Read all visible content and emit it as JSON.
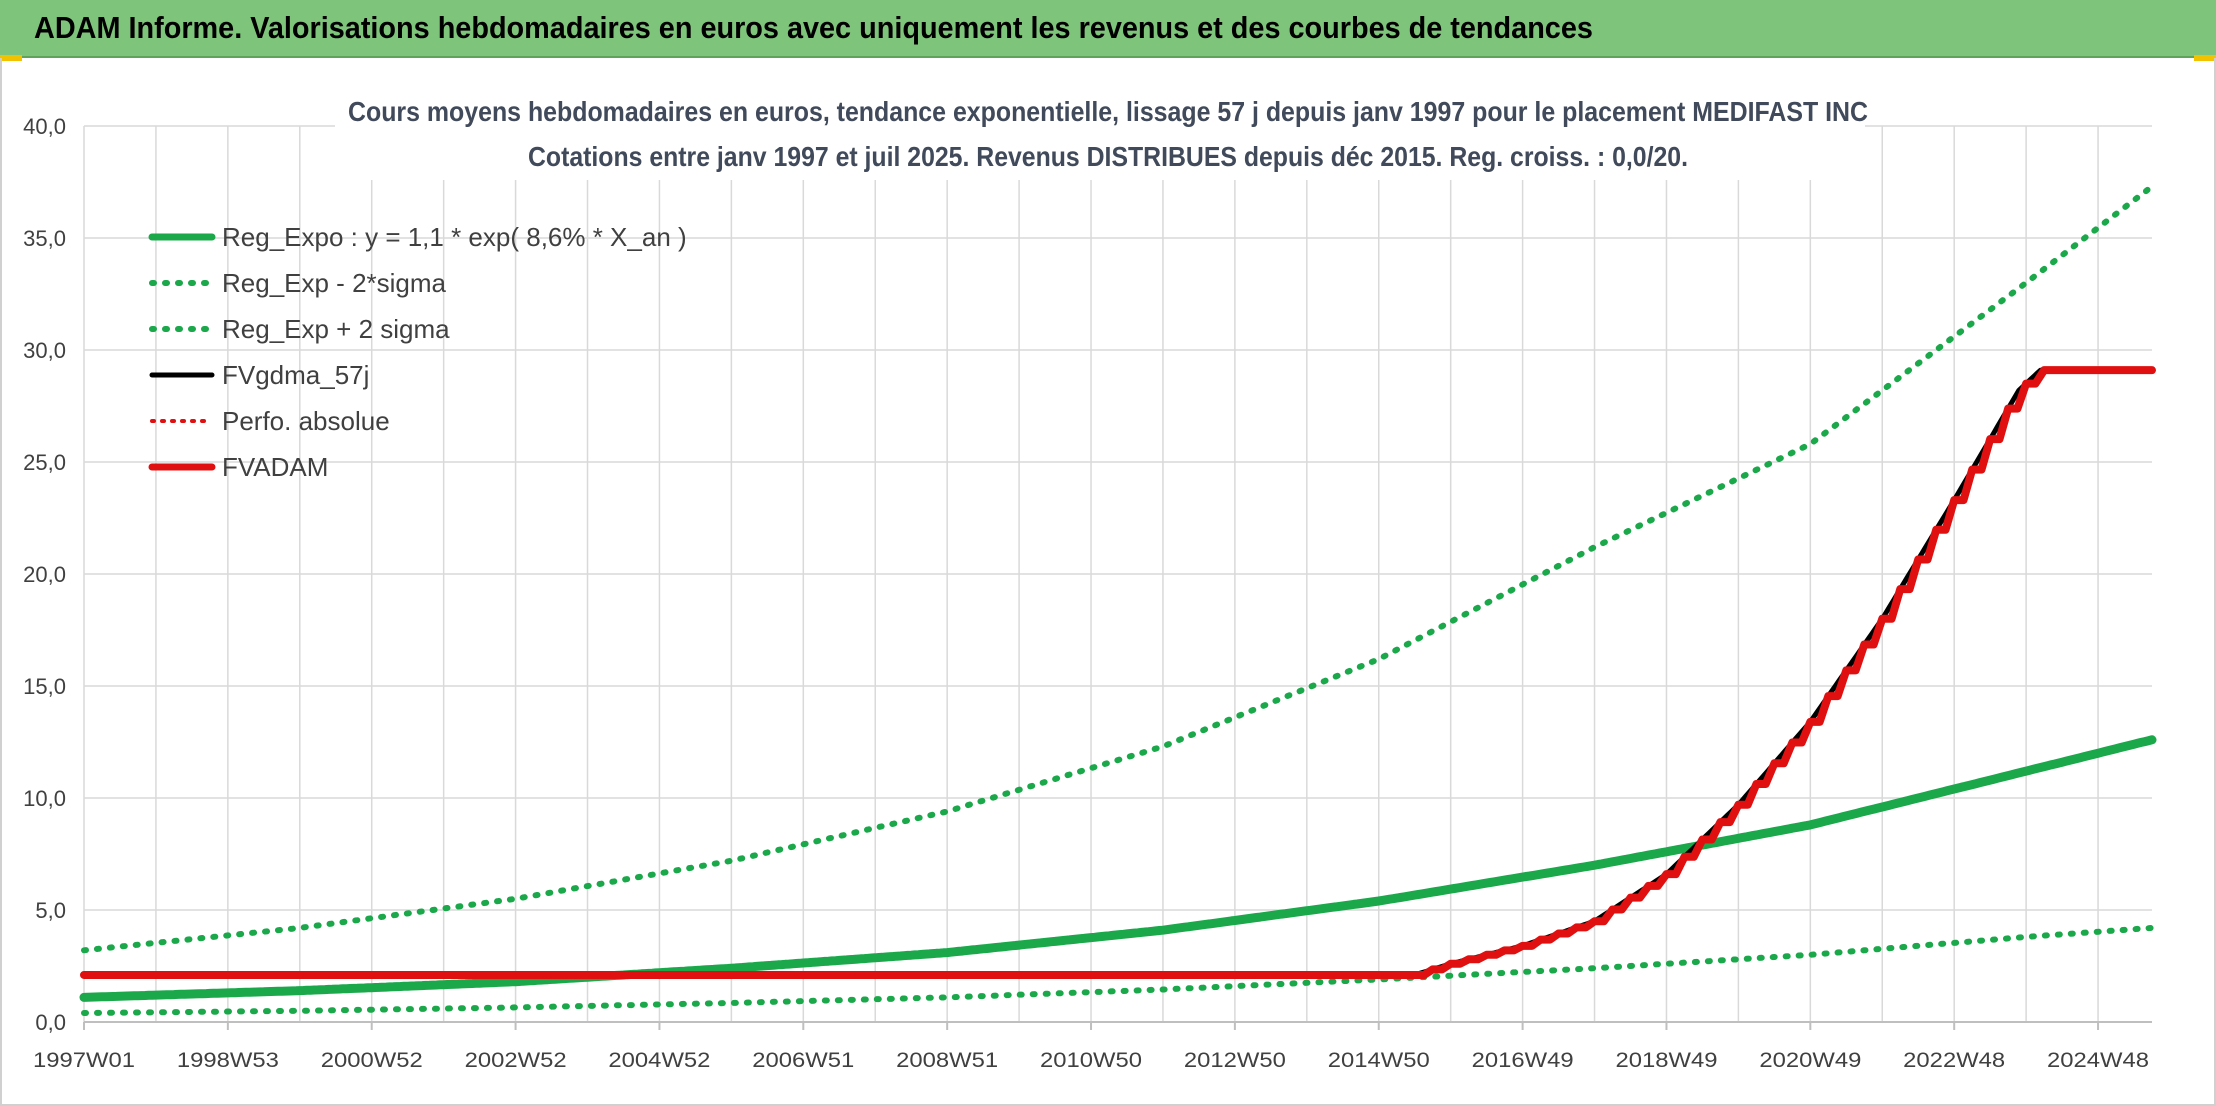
{
  "header": {
    "title": "ADAM Informe. Valorisations hebdomadaires en euros avec uniquement les revenus et des courbes de tendances"
  },
  "chart_data": {
    "type": "line",
    "title": "Cours moyens hebdomadaires en euros, tendance exponentielle, lissage 57 j depuis janv 1997 pour le placement MEDIFAST INC",
    "subtitle": "Cotations entre janv 1997 et juil 2025. Revenus DISTRIBUES depuis déc 2015. Reg. croiss. : 0,0/20.",
    "xlabel": "",
    "ylabel": "",
    "x_range": [
      1997.0,
      2025.75
    ],
    "ylim": [
      0,
      40
    ],
    "y_ticks": [
      "0,0",
      "5,0",
      "10,0",
      "15,0",
      "20,0",
      "25,0",
      "30,0",
      "35,0",
      "40,0"
    ],
    "x_ticks": [
      {
        "label": "1997W01",
        "x": 1997.0
      },
      {
        "label": "1998W53",
        "x": 1999.0
      },
      {
        "label": "2000W52",
        "x": 2001.0
      },
      {
        "label": "2002W52",
        "x": 2003.0
      },
      {
        "label": "2004W52",
        "x": 2005.0
      },
      {
        "label": "2006W51",
        "x": 2007.0
      },
      {
        "label": "2008W51",
        "x": 2009.0
      },
      {
        "label": "2010W50",
        "x": 2011.0
      },
      {
        "label": "2012W50",
        "x": 2013.0
      },
      {
        "label": "2014W50",
        "x": 2015.0
      },
      {
        "label": "2016W49",
        "x": 2017.0
      },
      {
        "label": "2018W49",
        "x": 2019.0
      },
      {
        "label": "2020W49",
        "x": 2021.0
      },
      {
        "label": "2022W48",
        "x": 2023.0
      },
      {
        "label": "2024W48",
        "x": 2025.0
      }
    ],
    "grid": true,
    "legend_position": "top-left",
    "series": [
      {
        "name": "Reg_Expo : y = 1,1 * exp( 8,6% *  X_an )",
        "style": "solid",
        "color": "#1aa84a",
        "x": [
          1997,
          2000,
          2003,
          2006,
          2009,
          2012,
          2015,
          2018,
          2021,
          2024,
          2025.75
        ],
        "values": [
          1.1,
          1.4,
          1.8,
          2.4,
          3.1,
          4.1,
          5.4,
          7.0,
          8.8,
          11.2,
          12.6
        ]
      },
      {
        "name": "Reg_Exp - 2*sigma",
        "style": "dotted",
        "color": "#1aa84a",
        "x": [
          1997,
          2000,
          2003,
          2006,
          2009,
          2012,
          2015,
          2018,
          2021,
          2024,
          2025.75
        ],
        "values": [
          0.4,
          0.5,
          0.65,
          0.85,
          1.1,
          1.45,
          1.9,
          2.4,
          3.0,
          3.8,
          4.2
        ]
      },
      {
        "name": "Reg_Exp + 2 sigma",
        "style": "dotted",
        "color": "#1aa84a",
        "x": [
          1997,
          2000,
          2003,
          2006,
          2009,
          2012,
          2015,
          2018,
          2021,
          2024,
          2025.75
        ],
        "values": [
          3.2,
          4.2,
          5.5,
          7.2,
          9.4,
          12.3,
          16.2,
          21.2,
          25.8,
          33.0,
          37.3
        ]
      },
      {
        "name": "FVgdma_57j",
        "style": "solid",
        "color": "#000000",
        "x": [
          1997,
          2015.5,
          2016,
          2017,
          2018,
          2019,
          2020,
          2021,
          2022,
          2023,
          2023.9,
          2024.2,
          2025.75
        ],
        "values": [
          2.1,
          2.1,
          2.6,
          3.4,
          4.5,
          6.6,
          9.7,
          13.4,
          18.0,
          23.3,
          28.2,
          29.1,
          29.1
        ]
      },
      {
        "name": "Perfo. absolue",
        "style": "dotted",
        "color": "#e01010",
        "x": [],
        "values": []
      },
      {
        "name": "FVADAM",
        "style": "solid",
        "color": "#e01010",
        "x": [
          1997,
          2015.5,
          2016,
          2017,
          2018,
          2019,
          2020,
          2021,
          2022,
          2023,
          2023.9,
          2024.2,
          2025.75
        ],
        "values": [
          2.1,
          2.1,
          2.6,
          3.4,
          4.5,
          6.6,
          9.7,
          13.4,
          18.0,
          23.3,
          28.2,
          29.1,
          29.1
        ]
      }
    ]
  },
  "colors": {
    "banner": "#7ec47a",
    "grid": "#d9d9d9",
    "axis_text": "#404040"
  }
}
